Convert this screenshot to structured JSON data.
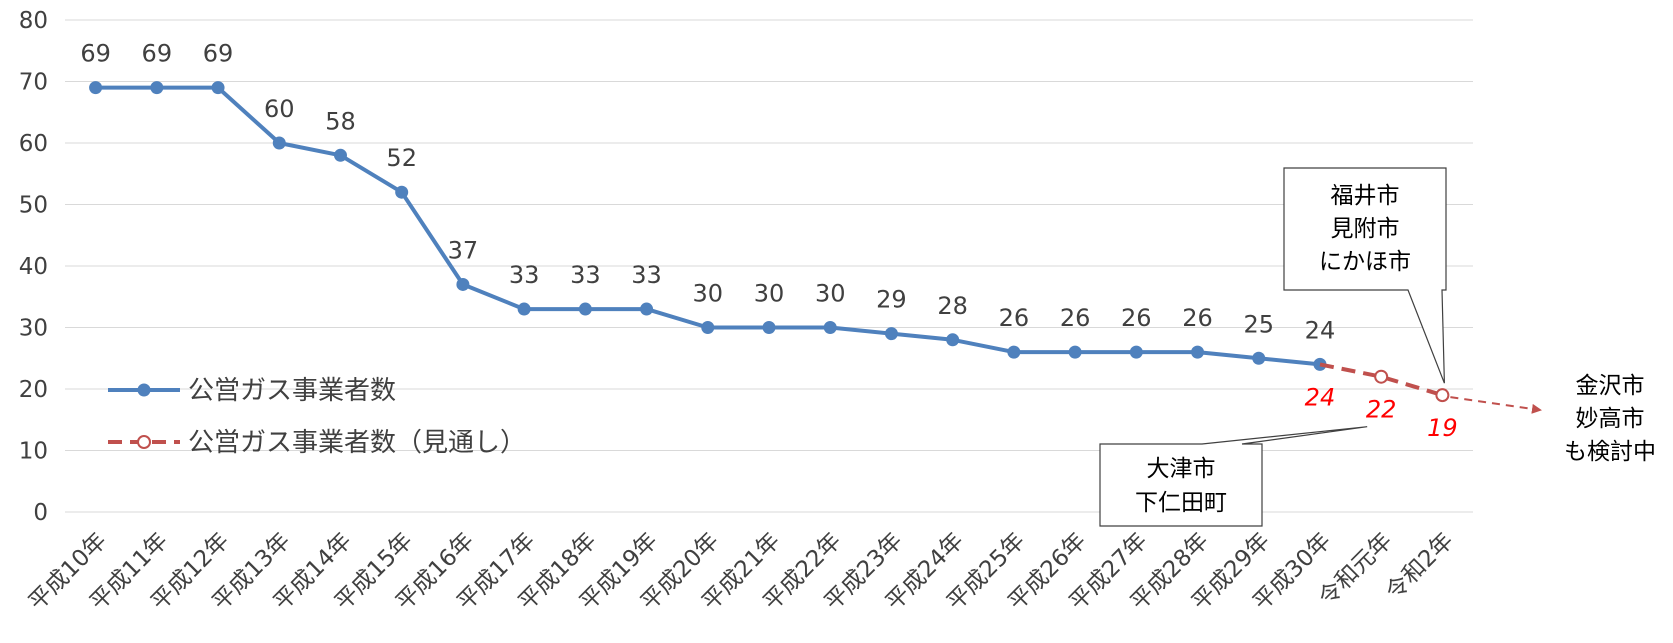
{
  "chart_data": {
    "type": "line",
    "categories": [
      "平成10年",
      "平成11年",
      "平成12年",
      "平成13年",
      "平成14年",
      "平成15年",
      "平成16年",
      "平成17年",
      "平成18年",
      "平成19年",
      "平成20年",
      "平成21年",
      "平成22年",
      "平成23年",
      "平成24年",
      "平成25年",
      "平成26年",
      "平成27年",
      "平成28年",
      "平成29年",
      "平成30年",
      "令和元年",
      "令和2年"
    ],
    "ylim": [
      0,
      80
    ],
    "yticks": [
      "0",
      "10",
      "20",
      "30",
      "40",
      "50",
      "60",
      "70",
      "80"
    ],
    "grid": true,
    "legend_position": "left",
    "series": [
      {
        "name": "公営ガス事業者数",
        "color": "#4f81bd",
        "style": "solid",
        "values": [
          69,
          69,
          69,
          60,
          58,
          52,
          37,
          33,
          33,
          33,
          30,
          30,
          30,
          29,
          28,
          26,
          26,
          26,
          26,
          25,
          24,
          null,
          null
        ],
        "labels": [
          "69",
          "69",
          "69",
          "60",
          "58",
          "52",
          "37",
          "33",
          "33",
          "33",
          "30",
          "30",
          "30",
          "29",
          "28",
          "26",
          "26",
          "26",
          "26",
          "25",
          "24",
          null,
          null
        ]
      },
      {
        "name": "公営ガス事業者数（見通し）",
        "color": "#c0504d",
        "style": "dashed",
        "values": [
          null,
          null,
          null,
          null,
          null,
          null,
          null,
          null,
          null,
          null,
          null,
          null,
          null,
          null,
          null,
          null,
          null,
          null,
          null,
          null,
          24,
          22,
          19
        ],
        "labels": [
          null,
          null,
          null,
          null,
          null,
          null,
          null,
          null,
          null,
          null,
          null,
          null,
          null,
          null,
          null,
          null,
          null,
          null,
          null,
          null,
          "24",
          "22",
          "19"
        ],
        "label_color": "#ff0000"
      }
    ],
    "annotations": [
      {
        "lines": [
          "福井市",
          "見附市",
          "にかほ市"
        ],
        "points_to": "令和2年"
      },
      {
        "lines": [
          "大津市",
          "下仁田町"
        ],
        "points_to": "令和元年"
      },
      {
        "lines": [
          "金沢市",
          "妙高市",
          "も検討中"
        ],
        "arrow_from": "令和2年"
      }
    ]
  }
}
